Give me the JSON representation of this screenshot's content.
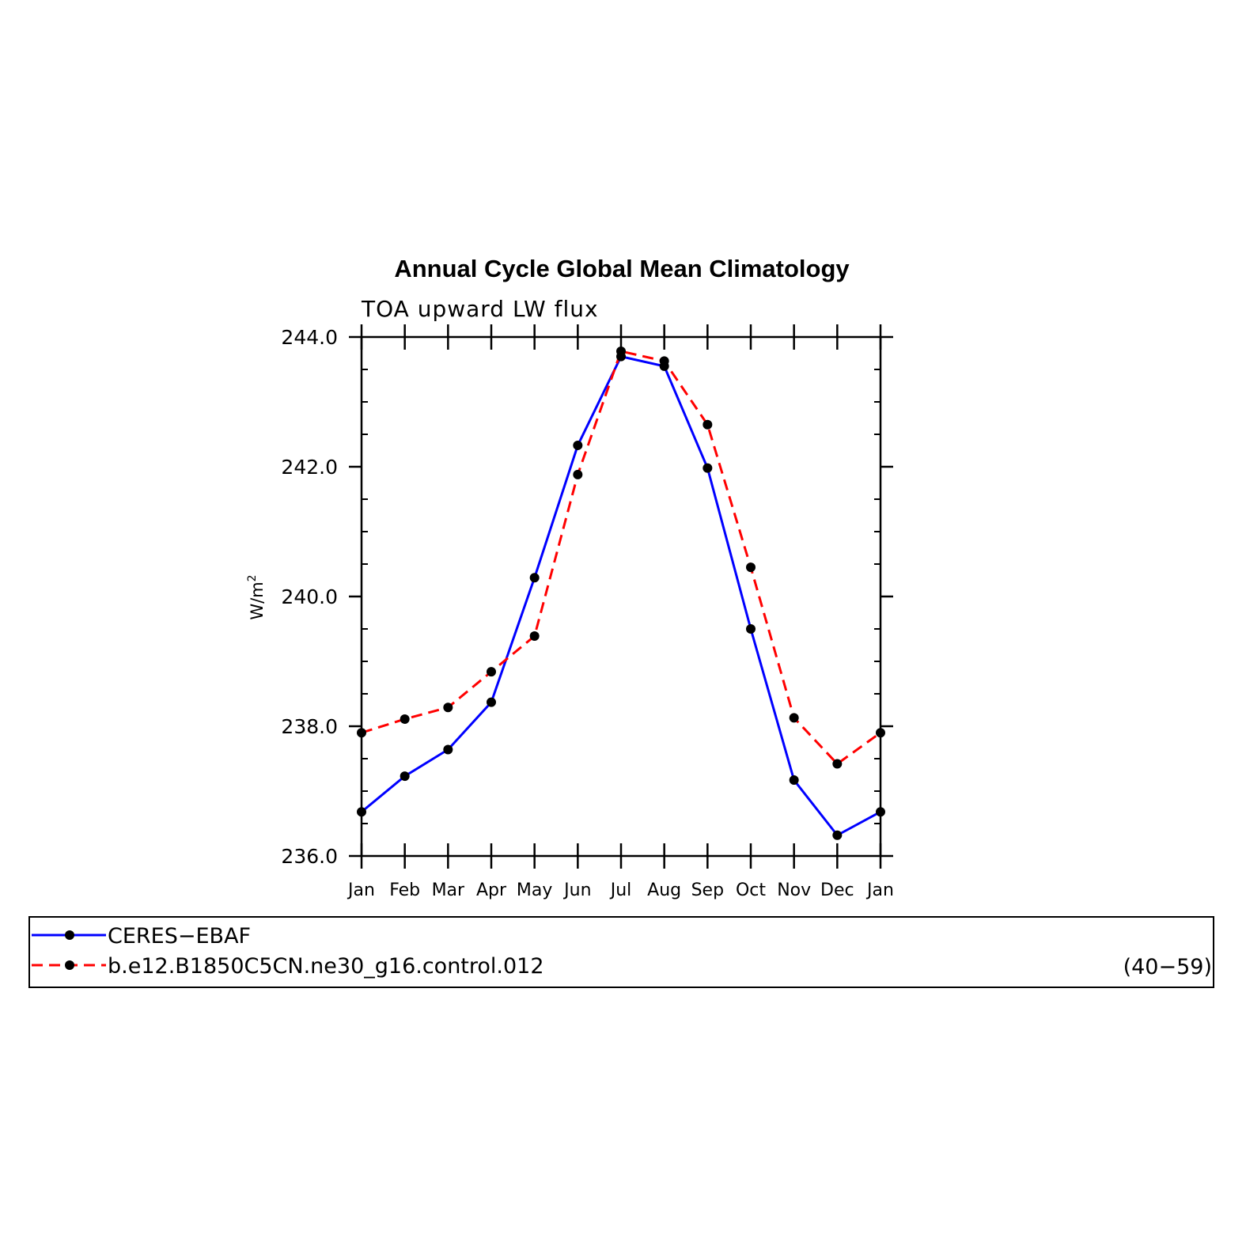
{
  "chart_data": {
    "type": "line",
    "title": "Annual Cycle Global Mean Climatology",
    "subtitle": "TOA upward LW flux",
    "ylabel": "W/m",
    "ylabel_superscript": "2",
    "ylim": [
      236.0,
      244.0
    ],
    "yticks": [
      "236.0",
      "238.0",
      "240.0",
      "242.0",
      "244.0"
    ],
    "categories": [
      "Jan",
      "Feb",
      "Mar",
      "Apr",
      "May",
      "Jun",
      "Jul",
      "Aug",
      "Sep",
      "Oct",
      "Nov",
      "Dec",
      "Jan"
    ],
    "series": [
      {
        "name": "CERES−EBAF",
        "color": "#0000ff",
        "dash": "solid",
        "values": [
          236.68,
          237.23,
          237.64,
          238.37,
          240.29,
          242.33,
          243.7,
          243.55,
          241.98,
          239.5,
          237.17,
          236.32,
          236.68
        ]
      },
      {
        "name": "b.e12.B1850C5CN.ne30_g16.control.012",
        "color": "#ff0000",
        "dash": "dashed",
        "values": [
          237.9,
          238.11,
          238.29,
          238.84,
          239.39,
          241.88,
          243.78,
          243.63,
          242.65,
          240.45,
          238.13,
          237.42,
          237.9
        ]
      }
    ],
    "legend_note": "(40−59)",
    "legend_placement": "bottom"
  }
}
